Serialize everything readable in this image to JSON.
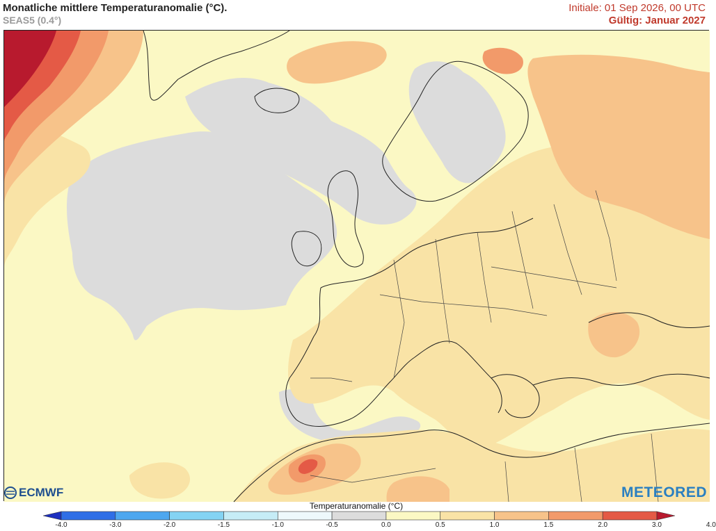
{
  "header": {
    "title": "Monatliche mittlere Temperaturanomalie (°C).",
    "subtitle": "SEAS5 (0.4°)",
    "initial": "Initiale: 01 Sep 2026, 00 UTC",
    "valid": "Gültig: Januar 2027"
  },
  "logos": {
    "left": "ECMWF",
    "right": "METEORED"
  },
  "colorbar": {
    "title": "Temperaturanomalie (°C)",
    "ticks": [
      "-4.0",
      "-3.0",
      "-2.0",
      "-1.5",
      "-1.0",
      "-0.5",
      "0.0",
      "0.5",
      "1.0",
      "1.5",
      "2.0",
      "3.0",
      "4.0"
    ],
    "colors": [
      "#1d2fbf",
      "#2f6ee6",
      "#4ea7ef",
      "#84d3f3",
      "#c6ecf6",
      "#eef8fb",
      "#dcdcdc",
      "#fbf8c4",
      "#f9e3a6",
      "#f7c38a",
      "#f29a6a",
      "#e45a46",
      "#b81a2e"
    ]
  },
  "map_colors": {
    "ocean_neutral": "#dcdcdc",
    "anomaly_0_5_1": "#fbf8c4",
    "anomaly_1_1_5": "#f9e3a6",
    "anomaly_1_5_2": "#f7c38a",
    "anomaly_2_3": "#f29a6a",
    "anomaly_3_4": "#e45a46",
    "anomaly_gt_4": "#b81a2e"
  }
}
